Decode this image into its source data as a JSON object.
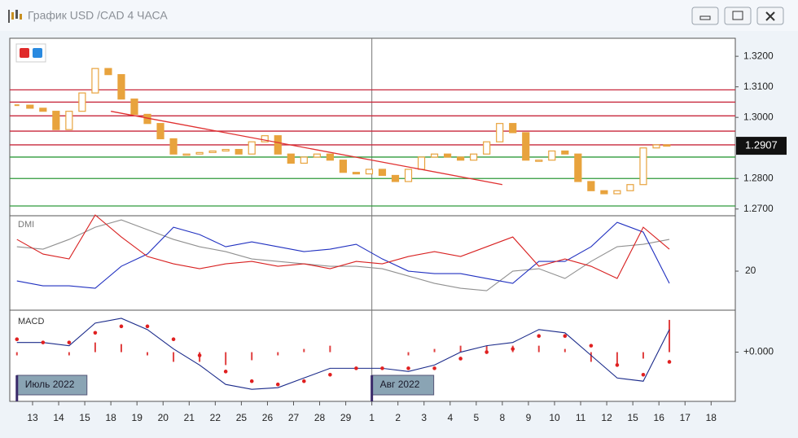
{
  "window": {
    "title": "График USD /CAD  4 ЧАСА"
  },
  "price_panel": {
    "ylim": [
      1.2678,
      1.3259
    ],
    "yticks": [
      {
        "value": 1.32,
        "label": "1.3200"
      },
      {
        "value": 1.31,
        "label": "1.3100"
      },
      {
        "value": 1.3,
        "label": "1.3000"
      },
      {
        "value": 1.28,
        "label": "1.2800"
      },
      {
        "value": 1.27,
        "label": "1.2700"
      }
    ],
    "current": {
      "value": 1.2907,
      "label": "1.2907"
    },
    "levels": [
      {
        "value": 1.309,
        "color": "#c8283c"
      },
      {
        "value": 1.305,
        "color": "#c8283c"
      },
      {
        "value": 1.3005,
        "color": "#c8283c"
      },
      {
        "value": 1.2955,
        "color": "#c8283c"
      },
      {
        "value": 1.291,
        "color": "#c8283c"
      },
      {
        "value": 1.287,
        "color": "#2e9a3a"
      },
      {
        "value": 1.28,
        "color": "#2e9a3a"
      },
      {
        "value": 1.271,
        "color": "#2e9a3a"
      }
    ],
    "trendline": {
      "x": [
        3,
        18
      ],
      "y": [
        1.302,
        1.278
      ],
      "color": "#e03030"
    },
    "color": "#e8a33d",
    "x": [
      -0.6,
      -0.1,
      0.4,
      0.9,
      1.4,
      1.9,
      2.4,
      2.9,
      3.4,
      3.9,
      4.4,
      4.9,
      5.4,
      5.9,
      6.4,
      6.9,
      7.4,
      7.9,
      8.4,
      8.9,
      9.4,
      9.9,
      10.4,
      10.9,
      11.4,
      11.9,
      12.4,
      12.9,
      13.4,
      13.9,
      14.4,
      14.9,
      15.4,
      15.9,
      16.4,
      16.9,
      17.4,
      17.9,
      18.4,
      18.9,
      19.4,
      19.9,
      20.4,
      20.9,
      21.4,
      21.9,
      22.4,
      22.9,
      23.4,
      23.9,
      24.3
    ],
    "close": [
      1.304,
      1.303,
      1.302,
      1.296,
      1.302,
      1.308,
      1.316,
      1.314,
      1.306,
      1.301,
      1.298,
      1.293,
      1.288,
      1.288,
      1.2885,
      1.289,
      1.2895,
      1.288,
      1.292,
      1.294,
      1.288,
      1.285,
      1.287,
      1.288,
      1.286,
      1.282,
      1.2815,
      1.283,
      1.281,
      1.279,
      1.283,
      1.287,
      1.288,
      1.287,
      1.286,
      1.288,
      1.292,
      1.298,
      1.295,
      1.286,
      1.286,
      1.289,
      1.288,
      1.279,
      1.276,
      1.275,
      1.276,
      1.278,
      1.29,
      1.291,
      1.2907
    ]
  },
  "dmi_panel": {
    "label": "DMI",
    "ylim": [
      5,
      41.7
    ],
    "yticks": [
      20
    ],
    "x": [
      -0.6,
      0.4,
      1.4,
      2.4,
      3.4,
      4.4,
      5.4,
      6.4,
      7.4,
      8.4,
      9.4,
      10.4,
      11.4,
      12.4,
      13.4,
      14.4,
      15.4,
      16.4,
      17.4,
      18.4,
      19.4,
      20.4,
      21.4,
      22.4,
      23.4,
      24.4
    ],
    "series": [
      {
        "color": "#909090",
        "values": [
          30,
          29,
          33,
          38,
          41,
          37,
          33,
          30,
          28,
          25,
          24,
          23,
          22,
          22,
          21,
          18,
          15,
          13,
          12,
          20,
          21,
          17,
          24,
          30,
          31,
          33
        ]
      },
      {
        "color": "#2030c0",
        "values": [
          16,
          14,
          14,
          13,
          22,
          27,
          38,
          35,
          30,
          32,
          30,
          28,
          29,
          31,
          25,
          20,
          19,
          19,
          17,
          15,
          24,
          24,
          30,
          40,
          36,
          15
        ]
      },
      {
        "color": "#d82020",
        "values": [
          33,
          27,
          25,
          43,
          34,
          26,
          23,
          21,
          23,
          24,
          22,
          23,
          21,
          24,
          23,
          26,
          28,
          26,
          30,
          34,
          22,
          25,
          22,
          17,
          38,
          29
        ]
      }
    ]
  },
  "macd_panel": {
    "label": "MACD",
    "ylim": [
      -0.001525,
      0.001225
    ],
    "yticks": [
      {
        "value": 0,
        "label": "+0.000"
      }
    ],
    "x": [
      -0.6,
      0.4,
      1.4,
      2.4,
      3.4,
      4.4,
      5.4,
      6.4,
      7.4,
      8.4,
      9.4,
      10.4,
      11.4,
      12.4,
      13.4,
      14.4,
      15.4,
      16.4,
      17.4,
      18.4,
      19.4,
      20.4,
      21.4,
      22.4,
      23.4,
      24.4
    ],
    "macd": {
      "color": "#1a2a8a",
      "values": [
        0.0003,
        0.0003,
        0.0002,
        0.0009,
        0.00105,
        0.0007,
        0.0001,
        -0.0004,
        -0.001,
        -0.00115,
        -0.0011,
        -0.0008,
        -0.0005,
        -0.0005,
        -0.0005,
        -0.0006,
        -0.0004,
        0,
        0.0002,
        0.0003,
        0.0007,
        0.0006,
        -0.0001,
        -0.0008,
        -0.0009,
        0.0007
      ]
    },
    "signal": {
      "color": "#e02020",
      "values": [
        0.0004,
        0.0003,
        0.0003,
        0.0006,
        0.0008,
        0.0008,
        0.0004,
        -0.0001,
        -0.0006,
        -0.0009,
        -0.001,
        -0.0009,
        -0.0007,
        -0.0005,
        -0.0005,
        -0.0005,
        -0.0005,
        -0.0002,
        0,
        0.0001,
        0.0005,
        0.0005,
        0.0002,
        -0.0004,
        -0.0007,
        -0.0003
      ]
    },
    "histogram": {
      "color": "#e04040",
      "values": [
        -0.0001,
        0,
        -0.0001,
        0.0003,
        0.00025,
        -0.0001,
        -0.0003,
        -0.0003,
        -0.0004,
        -0.00025,
        -0.0001,
        0.0001,
        0.0002,
        0,
        0,
        -0.0001,
        0.0001,
        0.0002,
        0.0002,
        0.0002,
        0.0002,
        0.0001,
        -0.0003,
        -0.0004,
        -0.0002,
        0.001
      ]
    }
  },
  "time_axis": {
    "months": [
      {
        "label": "Июль 2022",
        "x": -0.6
      },
      {
        "label": "Авг 2022",
        "x": 13
      }
    ],
    "days": [
      "13",
      "14",
      "15",
      "18",
      "19",
      "20",
      "21",
      "22",
      "25",
      "26",
      "27",
      "28",
      "29",
      "1",
      "2",
      "3",
      "4",
      "5",
      "8",
      "9",
      "10",
      "11",
      "12",
      "15",
      "16",
      "17",
      "18"
    ]
  }
}
